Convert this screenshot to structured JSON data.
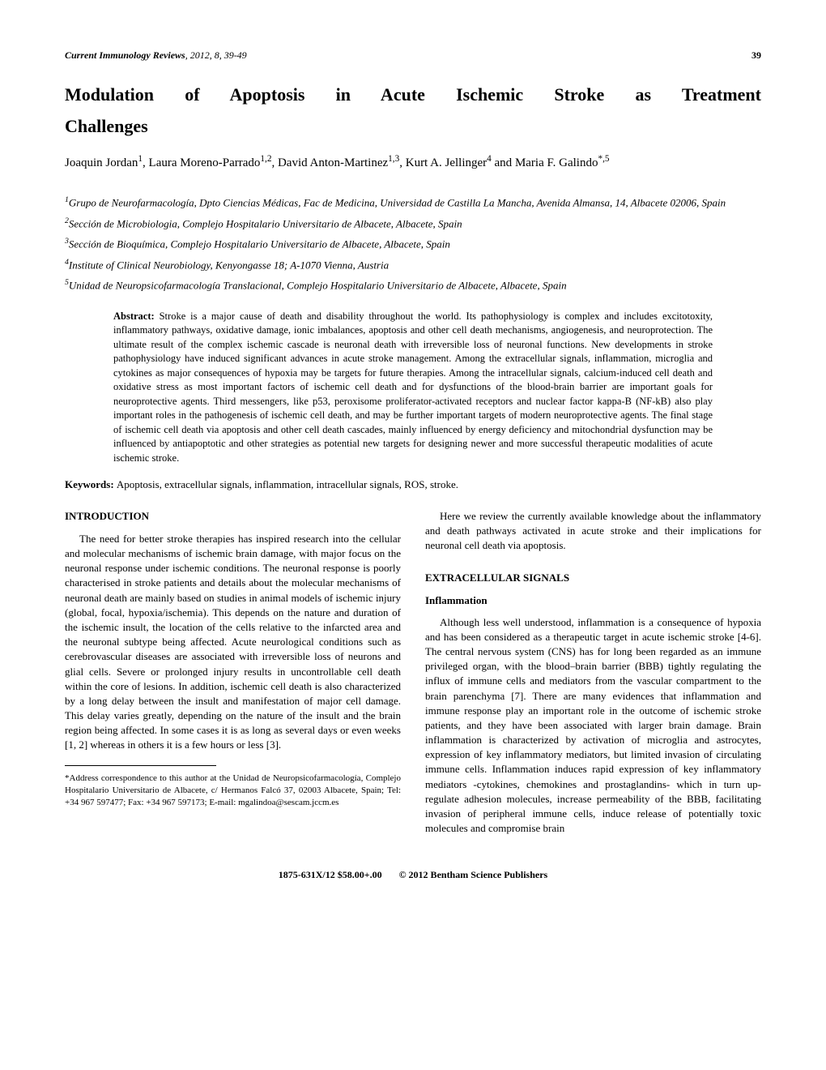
{
  "header": {
    "journal_name": "Current Immunology Reviews",
    "year_vol": ", 2012, 8, 39-49",
    "page": "39"
  },
  "title": {
    "line1": "Modulation of Apoptosis in Acute Ischemic Stroke as Treatment",
    "line2": "Challenges"
  },
  "authors": {
    "a1_name": "Joaquin Jordan",
    "a1_sup": "1",
    "a2_name": "Laura Moreno-Parrado",
    "a2_sup": "1,2",
    "a3_name": "David Anton-Martinez",
    "a3_sup": "1,3",
    "a4_name": "Kurt A. Jellinger",
    "a4_sup": "4",
    "a5_name": "Maria F. Galindo",
    "a5_sup": "*,5",
    "and": " and "
  },
  "affiliations": {
    "aff1_sup": "1",
    "aff1": "Grupo de Neurofarmacología, Dpto Ciencias Médicas, Fac de Medicina, Universidad de Castilla La Mancha, Avenida Almansa, 14, Albacete 02006, Spain",
    "aff2_sup": "2",
    "aff2": "Sección de Microbiologia, Complejo Hospitalario Universitario de Albacete, Albacete, Spain",
    "aff3_sup": "3",
    "aff3": "Sección de Bioquímica, Complejo Hospitalario Universitario de Albacete, Albacete, Spain",
    "aff4_sup": "4",
    "aff4": "Institute of Clinical Neurobiology, Kenyongasse 18; A-1070 Vienna, Austria",
    "aff5_sup": "5",
    "aff5": "Unidad de Neuropsicofarmacología Translacional, Complejo Hospitalario Universitario de Albacete, Albacete, Spain"
  },
  "abstract": {
    "label": "Abstract: ",
    "text": "Stroke is a major cause of death and disability throughout the world. Its pathophysiology is complex and includes excitotoxity, inflammatory pathways, oxidative damage, ionic imbalances, apoptosis and other cell death mechanisms, angiogenesis, and neuroprotection. The ultimate result of the complex ischemic cascade is neuronal death with irreversible loss of neuronal functions. New developments in stroke pathophysiology have induced significant advances in acute stroke management. Among the extracellular signals, inflammation, microglia and cytokines as major consequences of hypoxia may be targets for future therapies. Among the intracellular signals, calcium-induced cell death and oxidative stress as most important factors of ischemic cell death and for dysfunctions of the blood-brain barrier are important goals for neuroprotective agents. Third messengers, like p53, peroxisome proliferator-activated receptors and nuclear factor kappa-B (NF-kB) also play important roles in the pathogenesis of ischemic cell death, and may be further important targets of modern neuroprotective agents. The final stage of ischemic cell death via apoptosis and other cell death cascades, mainly influenced by energy deficiency and mitochondrial dysfunction may be influenced by antiapoptotic and other strategies as potential new targets for designing newer and more successful therapeutic modalities of acute ischemic stroke."
  },
  "keywords": {
    "label": "Keywords: ",
    "text": "Apoptosis, extracellular signals, inflammation, intracellular signals, ROS, stroke."
  },
  "sections": {
    "intro_heading": "INTRODUCTION",
    "intro_p1": "The need for better stroke therapies has inspired research into the cellular and molecular mechanisms of ischemic brain damage, with major focus on the neuronal response under ischemic conditions. The neuronal response is poorly characterised in stroke patients and details about the molecular mechanisms of neuronal death are mainly based on studies in animal models of ischemic injury (global, focal, hypoxia/ischemia). This depends on the nature and duration of the ischemic insult, the location of the cells relative to the infarcted area and the neuronal subtype being affected. Acute neurological conditions such as cerebrovascular diseases are associated with irreversible loss of neurons and glial cells. Severe or prolonged injury results in uncontrollable cell death within the core of lesions. In addition, ischemic cell death is also characterized by a long delay between the insult and manifestation of major cell damage. This delay varies greatly, depending on the nature of the insult and the brain region being affected. In some cases it is as long as several days or even weeks [1, 2] whereas in others it is a few hours or less [3].",
    "intro_p2": "Here we review the currently available knowledge about the inflammatory and death pathways activated in acute stroke and their implications for neuronal cell death via apoptosis.",
    "extra_heading": "EXTRACELLULAR SIGNALS",
    "inflam_heading": "Inflammation",
    "inflam_p1": "Although less well understood, inflammation is a consequence of hypoxia and has been considered as a therapeutic target in acute ischemic stroke [4-6]. The central nervous system (CNS) has for long been regarded as an immune privileged organ, with the blood–brain barrier (BBB) tightly regulating the influx of immune cells and mediators from the vascular compartment to the brain parenchyma [7]. There are many evidences that inflammation and immune response play an important role in the outcome of ischemic stroke patients, and they have been associated with larger brain damage. Brain inflammation is characterized by activation of microglia and astrocytes, expression of key inflammatory mediators, but limited invasion of circulating immune cells. Inflammation induces rapid expression of key inflammatory mediators -cytokines, chemokines and prostaglandins- which in turn up-regulate adhesion molecules, increase permeability of the BBB, facilitating invasion of peripheral immune cells, induce release of potentially toxic molecules and compromise brain"
  },
  "footnote": {
    "text": "*Address correspondence to this author at the Unidad de Neuropsicofarmacología, Complejo Hospitalario Universitario de Albacete, c/ Hermanos Falcó 37, 02003 Albacete, Spain; Tel: +34 967 597477; Fax: +34 967 597173; E-mail: mgalindoa@sescam.jccm.es"
  },
  "footer": {
    "issn": "1875-631X/12 $58.00+.00",
    "copyright": "© 2012 Bentham Science Publishers"
  }
}
